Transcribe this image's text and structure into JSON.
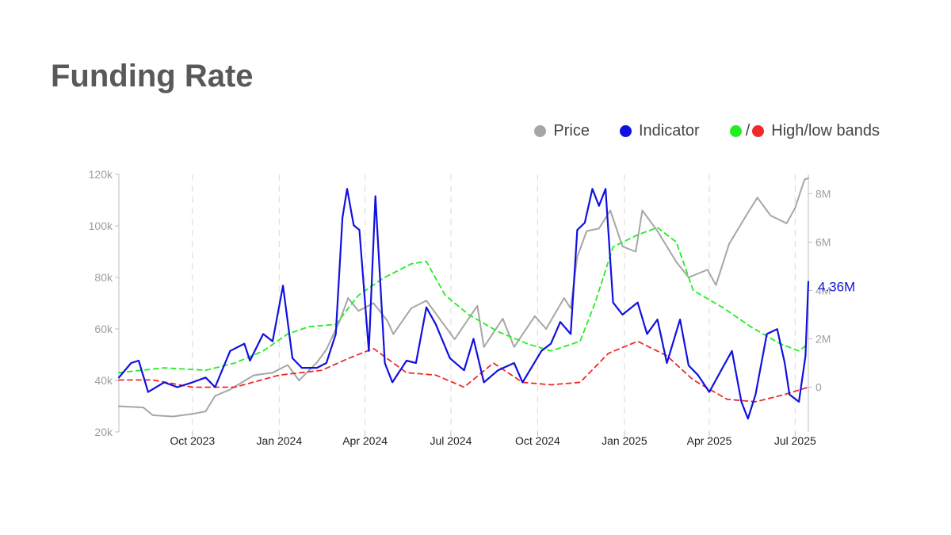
{
  "page": {
    "title": "Funding Rate"
  },
  "legend": {
    "price": {
      "label": "Price",
      "color": "#a6a6a6"
    },
    "indicator": {
      "label": "Indicator",
      "color": "#1010e0"
    },
    "bands": {
      "label": "High/low bands",
      "high_color": "#22ee22",
      "low_color": "#ee2a2a",
      "separator": "/"
    }
  },
  "chart_data": {
    "type": "line",
    "x_start": "2023-07-15",
    "x_end": "2025-07-15",
    "x_ticks": [
      {
        "label": "Oct 2023",
        "date": "2023-10-01"
      },
      {
        "label": "Jan 2024",
        "date": "2024-01-01"
      },
      {
        "label": "Apr 2024",
        "date": "2024-04-01"
      },
      {
        "label": "Jul 2024",
        "date": "2024-07-01"
      },
      {
        "label": "Oct 2024",
        "date": "2024-10-01"
      },
      {
        "label": "Jan 2025",
        "date": "2025-01-01"
      },
      {
        "label": "Apr 2025",
        "date": "2025-04-01"
      },
      {
        "label": "Jul 2025",
        "date": "2025-07-01"
      }
    ],
    "y_left": {
      "ylim": [
        20000,
        120000
      ],
      "ticks": [
        {
          "label": "20k",
          "value": 20000
        },
        {
          "label": "40k",
          "value": 40000
        },
        {
          "label": "60k",
          "value": 60000
        },
        {
          "label": "80k",
          "value": 80000
        },
        {
          "label": "100k",
          "value": 100000
        },
        {
          "label": "120k",
          "value": 120000
        }
      ]
    },
    "y_right": {
      "ylim": [
        -1850000,
        8800000
      ],
      "ticks": [
        {
          "label": "0",
          "value": 0
        },
        {
          "label": "2M",
          "value": 2000000
        },
        {
          "label": "4M",
          "value": 4000000
        },
        {
          "label": "6M",
          "value": 6000000
        },
        {
          "label": "8M",
          "value": 8000000
        }
      ]
    },
    "last_value_label": "4.36M",
    "grid": "vertical dashed at x ticks",
    "series": [
      {
        "name": "Price",
        "axis": "left",
        "style": "solid",
        "points": [
          [
            "2023-07-15",
            30000
          ],
          [
            "2023-08-10",
            29500
          ],
          [
            "2023-08-20",
            26500
          ],
          [
            "2023-09-10",
            26000
          ],
          [
            "2023-10-01",
            27000
          ],
          [
            "2023-10-15",
            28000
          ],
          [
            "2023-10-25",
            34000
          ],
          [
            "2023-11-10",
            36500
          ],
          [
            "2023-12-05",
            42000
          ],
          [
            "2023-12-25",
            43000
          ],
          [
            "2024-01-10",
            46000
          ],
          [
            "2024-01-22",
            40000
          ],
          [
            "2024-02-10",
            47000
          ],
          [
            "2024-02-20",
            52000
          ],
          [
            "2024-03-05",
            63000
          ],
          [
            "2024-03-14",
            72000
          ],
          [
            "2024-03-25",
            67000
          ],
          [
            "2024-04-10",
            70000
          ],
          [
            "2024-04-25",
            63000
          ],
          [
            "2024-05-01",
            58000
          ],
          [
            "2024-05-20",
            68000
          ],
          [
            "2024-06-05",
            71000
          ],
          [
            "2024-06-25",
            61000
          ],
          [
            "2024-07-05",
            56000
          ],
          [
            "2024-07-29",
            69000
          ],
          [
            "2024-08-05",
            53000
          ],
          [
            "2024-08-25",
            64000
          ],
          [
            "2024-09-06",
            53000
          ],
          [
            "2024-09-28",
            65000
          ],
          [
            "2024-10-10",
            60000
          ],
          [
            "2024-10-29",
            72000
          ],
          [
            "2024-11-05",
            68000
          ],
          [
            "2024-11-12",
            88000
          ],
          [
            "2024-11-22",
            98000
          ],
          [
            "2024-12-05",
            99000
          ],
          [
            "2024-12-17",
            106000
          ],
          [
            "2024-12-30",
            92000
          ],
          [
            "2025-01-13",
            90000
          ],
          [
            "2025-01-20",
            106000
          ],
          [
            "2025-02-05",
            98000
          ],
          [
            "2025-02-25",
            86000
          ],
          [
            "2025-03-10",
            80000
          ],
          [
            "2025-03-30",
            83000
          ],
          [
            "2025-04-08",
            77000
          ],
          [
            "2025-04-22",
            93000
          ],
          [
            "2025-05-10",
            104000
          ],
          [
            "2025-05-22",
            111000
          ],
          [
            "2025-06-05",
            104000
          ],
          [
            "2025-06-22",
            101000
          ],
          [
            "2025-07-01",
            107000
          ],
          [
            "2025-07-11",
            118000
          ],
          [
            "2025-07-15",
            118500
          ]
        ]
      },
      {
        "name": "Indicator",
        "axis": "right",
        "style": "solid",
        "points": [
          [
            "2023-07-15",
            400000
          ],
          [
            "2023-07-28",
            1000000
          ],
          [
            "2023-08-05",
            1100000
          ],
          [
            "2023-08-15",
            -200000
          ],
          [
            "2023-09-01",
            200000
          ],
          [
            "2023-09-15",
            0
          ],
          [
            "2023-10-01",
            200000
          ],
          [
            "2023-10-15",
            400000
          ],
          [
            "2023-10-25",
            0
          ],
          [
            "2023-11-10",
            1500000
          ],
          [
            "2023-11-25",
            1800000
          ],
          [
            "2023-12-01",
            1100000
          ],
          [
            "2023-12-15",
            2200000
          ],
          [
            "2023-12-25",
            1900000
          ],
          [
            "2024-01-05",
            4200000
          ],
          [
            "2024-01-15",
            1200000
          ],
          [
            "2024-01-25",
            800000
          ],
          [
            "2024-02-10",
            800000
          ],
          [
            "2024-02-20",
            1000000
          ],
          [
            "2024-03-01",
            2200000
          ],
          [
            "2024-03-08",
            7000000
          ],
          [
            "2024-03-13",
            8200000
          ],
          [
            "2024-03-20",
            6700000
          ],
          [
            "2024-03-26",
            6500000
          ],
          [
            "2024-04-05",
            1500000
          ],
          [
            "2024-04-12",
            7900000
          ],
          [
            "2024-04-22",
            1000000
          ],
          [
            "2024-04-30",
            200000
          ],
          [
            "2024-05-15",
            1100000
          ],
          [
            "2024-05-25",
            1000000
          ],
          [
            "2024-06-05",
            3300000
          ],
          [
            "2024-06-15",
            2600000
          ],
          [
            "2024-06-30",
            1200000
          ],
          [
            "2024-07-15",
            700000
          ],
          [
            "2024-07-25",
            2000000
          ],
          [
            "2024-08-05",
            200000
          ],
          [
            "2024-08-20",
            700000
          ],
          [
            "2024-09-06",
            1000000
          ],
          [
            "2024-09-15",
            200000
          ],
          [
            "2024-10-05",
            1500000
          ],
          [
            "2024-10-15",
            1800000
          ],
          [
            "2024-10-25",
            2700000
          ],
          [
            "2024-11-05",
            2200000
          ],
          [
            "2024-11-12",
            6500000
          ],
          [
            "2024-11-20",
            6800000
          ],
          [
            "2024-11-28",
            8200000
          ],
          [
            "2024-12-05",
            7500000
          ],
          [
            "2024-12-12",
            8200000
          ],
          [
            "2024-12-20",
            3500000
          ],
          [
            "2024-12-30",
            3000000
          ],
          [
            "2025-01-15",
            3500000
          ],
          [
            "2025-01-25",
            2200000
          ],
          [
            "2025-02-05",
            2800000
          ],
          [
            "2025-02-15",
            1000000
          ],
          [
            "2025-03-01",
            2800000
          ],
          [
            "2025-03-10",
            900000
          ],
          [
            "2025-03-20",
            500000
          ],
          [
            "2025-04-01",
            -200000
          ],
          [
            "2025-04-15",
            800000
          ],
          [
            "2025-04-25",
            1500000
          ],
          [
            "2025-05-05",
            -600000
          ],
          [
            "2025-05-12",
            -1300000
          ],
          [
            "2025-05-20",
            -300000
          ],
          [
            "2025-06-01",
            2200000
          ],
          [
            "2025-06-12",
            2400000
          ],
          [
            "2025-06-20",
            1000000
          ],
          [
            "2025-06-25",
            -300000
          ],
          [
            "2025-07-05",
            -600000
          ],
          [
            "2025-07-12",
            1300000
          ],
          [
            "2025-07-15",
            4360000
          ]
        ]
      },
      {
        "name": "High band",
        "axis": "right",
        "style": "dashed",
        "points": [
          [
            "2023-07-15",
            600000
          ],
          [
            "2023-09-01",
            800000
          ],
          [
            "2023-10-15",
            700000
          ],
          [
            "2023-11-15",
            1000000
          ],
          [
            "2023-12-15",
            1500000
          ],
          [
            "2024-01-10",
            2200000
          ],
          [
            "2024-02-01",
            2500000
          ],
          [
            "2024-03-01",
            2600000
          ],
          [
            "2024-03-25",
            3800000
          ],
          [
            "2024-04-20",
            4500000
          ],
          [
            "2024-05-20",
            5100000
          ],
          [
            "2024-06-05",
            5200000
          ],
          [
            "2024-06-25",
            3800000
          ],
          [
            "2024-07-20",
            3000000
          ],
          [
            "2024-08-20",
            2300000
          ],
          [
            "2024-09-20",
            1800000
          ],
          [
            "2024-10-15",
            1500000
          ],
          [
            "2024-11-15",
            1900000
          ],
          [
            "2024-12-01",
            3500000
          ],
          [
            "2024-12-20",
            5800000
          ],
          [
            "2025-01-15",
            6300000
          ],
          [
            "2025-02-05",
            6600000
          ],
          [
            "2025-02-25",
            6000000
          ],
          [
            "2025-03-15",
            4000000
          ],
          [
            "2025-04-15",
            3300000
          ],
          [
            "2025-05-15",
            2500000
          ],
          [
            "2025-06-15",
            1800000
          ],
          [
            "2025-07-05",
            1500000
          ],
          [
            "2025-07-15",
            1800000
          ]
        ]
      },
      {
        "name": "Low band",
        "axis": "right",
        "style": "dashed",
        "points": [
          [
            "2023-07-15",
            300000
          ],
          [
            "2023-08-20",
            300000
          ],
          [
            "2023-10-01",
            0
          ],
          [
            "2023-11-15",
            0
          ],
          [
            "2024-01-01",
            500000
          ],
          [
            "2024-02-15",
            700000
          ],
          [
            "2024-03-15",
            1200000
          ],
          [
            "2024-04-10",
            1600000
          ],
          [
            "2024-05-15",
            600000
          ],
          [
            "2024-06-15",
            500000
          ],
          [
            "2024-07-15",
            0
          ],
          [
            "2024-08-15",
            1000000
          ],
          [
            "2024-09-15",
            200000
          ],
          [
            "2024-10-15",
            100000
          ],
          [
            "2024-11-15",
            200000
          ],
          [
            "2024-12-15",
            1400000
          ],
          [
            "2025-01-15",
            1900000
          ],
          [
            "2025-02-15",
            1300000
          ],
          [
            "2025-03-15",
            300000
          ],
          [
            "2025-04-20",
            -500000
          ],
          [
            "2025-05-20",
            -600000
          ],
          [
            "2025-06-20",
            -300000
          ],
          [
            "2025-07-15",
            0
          ]
        ]
      }
    ]
  }
}
